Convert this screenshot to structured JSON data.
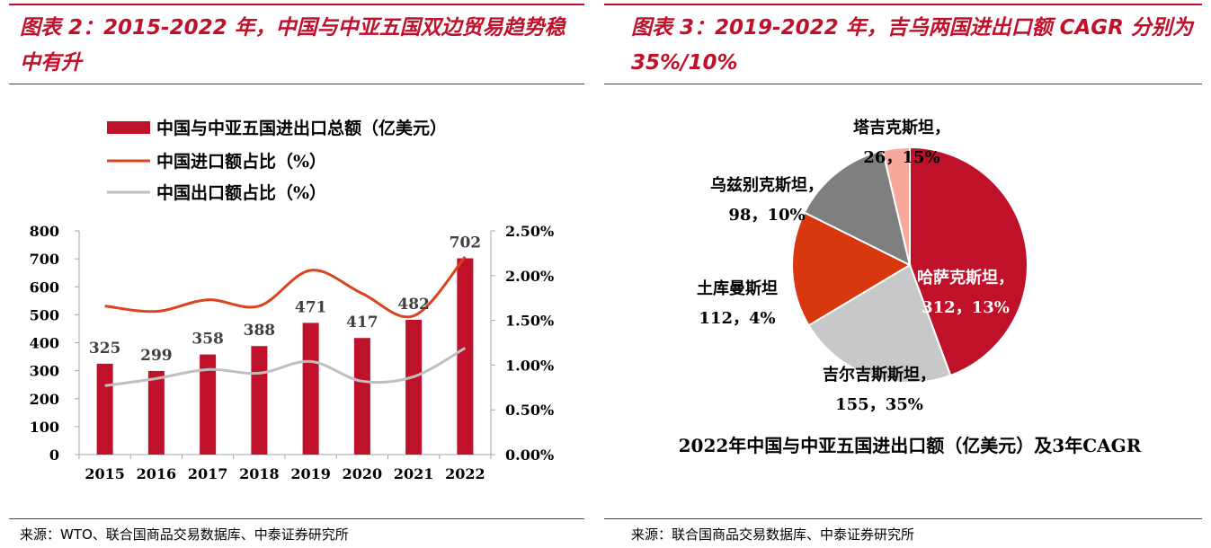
{
  "left": {
    "title": "图表 2：2015-2022 年，中国与中亚五国双边贸易趋势稳中有升",
    "source": "来源：WTO、联合国商品交易数据库、中泰证券研究所",
    "chart_data": {
      "type": "bar+line",
      "categories": [
        "2015",
        "2016",
        "2017",
        "2018",
        "2019",
        "2020",
        "2021",
        "2022"
      ],
      "bars": {
        "name": "中国与中亚五国进出口总额（亿美元）",
        "values": [
          325,
          299,
          358,
          388,
          471,
          417,
          482,
          702
        ],
        "labels": [
          "325",
          "299",
          "358",
          "388",
          "471",
          "417",
          "482",
          "702"
        ],
        "color": "#c0112b"
      },
      "lines": [
        {
          "name": "中国进口额占比（%）",
          "values": [
            1.66,
            1.6,
            1.73,
            1.66,
            2.06,
            1.8,
            1.55,
            2.21
          ],
          "color": "#d9431e"
        },
        {
          "name": "中国出口额占比（%）",
          "values": [
            0.77,
            0.85,
            0.95,
            0.91,
            1.04,
            0.82,
            0.87,
            1.19
          ],
          "color": "#bfbfbf"
        }
      ],
      "y_left": {
        "ticks": [
          "0",
          "100",
          "200",
          "300",
          "400",
          "500",
          "600",
          "700",
          "800"
        ],
        "lim": [
          0,
          800
        ]
      },
      "y_right": {
        "ticks": [
          "0.00%",
          "0.50%",
          "1.00%",
          "1.50%",
          "2.00%",
          "2.50%"
        ],
        "lim": [
          0,
          2.5
        ]
      },
      "legend_position": "top-left"
    }
  },
  "right": {
    "title": "图表 3：2019-2022 年，吉乌两国进出口额 CAGR 分别为 35%/10%",
    "source": "来源：联合国商品交易数据库、中泰证券研究所",
    "chart_data": {
      "type": "pie",
      "caption": "2022年中国与中亚五国进出口额（亿美元）及3年CAGR",
      "slices": [
        {
          "name": "哈萨克斯坦，",
          "value": 312,
          "label": "312，13%",
          "color": "#c0112b"
        },
        {
          "name": "吉尔吉斯斯坦，",
          "value": 155,
          "label": "155，35%",
          "color": "#c8c8c8"
        },
        {
          "name": "土库曼斯坦",
          "value": 112,
          "label": "112，4%",
          "color": "#d9380f"
        },
        {
          "name": "乌兹别克斯坦，",
          "value": 98,
          "label": "98，10%",
          "color": "#7f7f7f"
        },
        {
          "name": "塔吉克斯坦，",
          "value": 26,
          "label": "26，15%",
          "color": "#f6a89a"
        }
      ]
    }
  }
}
